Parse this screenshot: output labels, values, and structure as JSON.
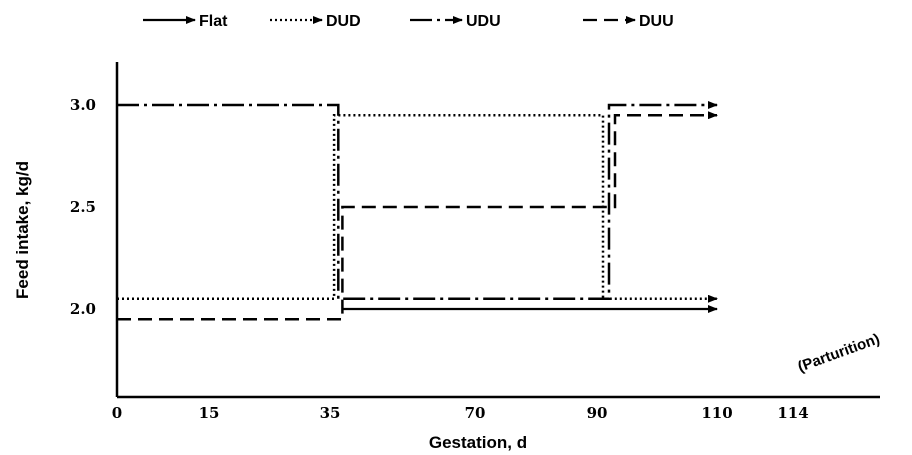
{
  "chart_data": {
    "type": "line",
    "xlabel": "Gestation, d",
    "ylabel": "Feed intake, kg/d",
    "x_ticks": [
      "0",
      "15",
      "35",
      "70",
      "90",
      "110",
      "114"
    ],
    "y_ticks": [
      "2.0",
      "2.5",
      "3.0"
    ],
    "annotation": "(Parturition)",
    "legend_position": "top",
    "series": [
      {
        "name": "Flat",
        "style": "solid",
        "points": [
          [
            38,
            2.0
          ],
          [
            110,
            2.0
          ]
        ]
      },
      {
        "name": "DUD",
        "style": "dotted",
        "points": [
          [
            0,
            2.05
          ],
          [
            36,
            2.05
          ],
          [
            36,
            2.95
          ],
          [
            91,
            2.95
          ],
          [
            91,
            2.05
          ],
          [
            110,
            2.05
          ]
        ]
      },
      {
        "name": "UDU",
        "style": "dashdot",
        "points": [
          [
            0,
            3.0
          ],
          [
            37,
            3.0
          ],
          [
            37,
            2.05
          ],
          [
            92,
            2.05
          ],
          [
            92,
            3.0
          ],
          [
            110,
            3.0
          ]
        ]
      },
      {
        "name": "DUU",
        "style": "dashed",
        "points": [
          [
            0,
            1.95
          ],
          [
            38,
            1.95
          ],
          [
            38,
            2.5
          ],
          [
            93,
            2.5
          ],
          [
            93,
            2.95
          ],
          [
            110,
            2.95
          ]
        ]
      }
    ]
  },
  "colors": {
    "line": "#000000",
    "background": "#ffffff"
  }
}
